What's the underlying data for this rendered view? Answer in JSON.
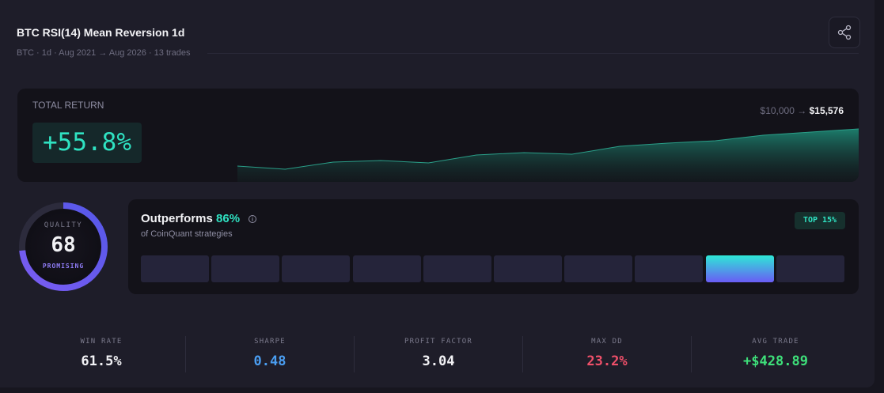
{
  "header": {
    "title": "BTC RSI(14) Mean Reversion 1d",
    "subtitle": "BTC · 1d · Aug 2021 → Aug 2026 · 13 trades"
  },
  "total_return": {
    "label": "TOTAL RETURN",
    "value": "+55.8%",
    "start": "$10,000",
    "separator": "→",
    "end": "$15,576",
    "equity_curve": [
      10228,
      9772,
      10797,
      11024,
      10683,
      11821,
      12162,
      11934,
      13072,
      13527,
      13869,
      14665,
      15121,
      15576
    ]
  },
  "quality": {
    "label": "QUALITY",
    "score": "68",
    "rating": "PROMISING"
  },
  "ranking": {
    "title": "Outperforms",
    "percent": "86%",
    "subtitle": "of CoinQuant strategies",
    "badge": "TOP 15%"
  },
  "stats": [
    {
      "label": "WIN RATE",
      "value": "61.5%"
    },
    {
      "label": "SHARPE",
      "value": "0.48"
    },
    {
      "label": "PROFIT FACTOR",
      "value": "3.04"
    },
    {
      "label": "MAX DD",
      "value": "23.2%"
    },
    {
      "label": "AVG TRADE",
      "value": "+$428.89"
    }
  ]
}
